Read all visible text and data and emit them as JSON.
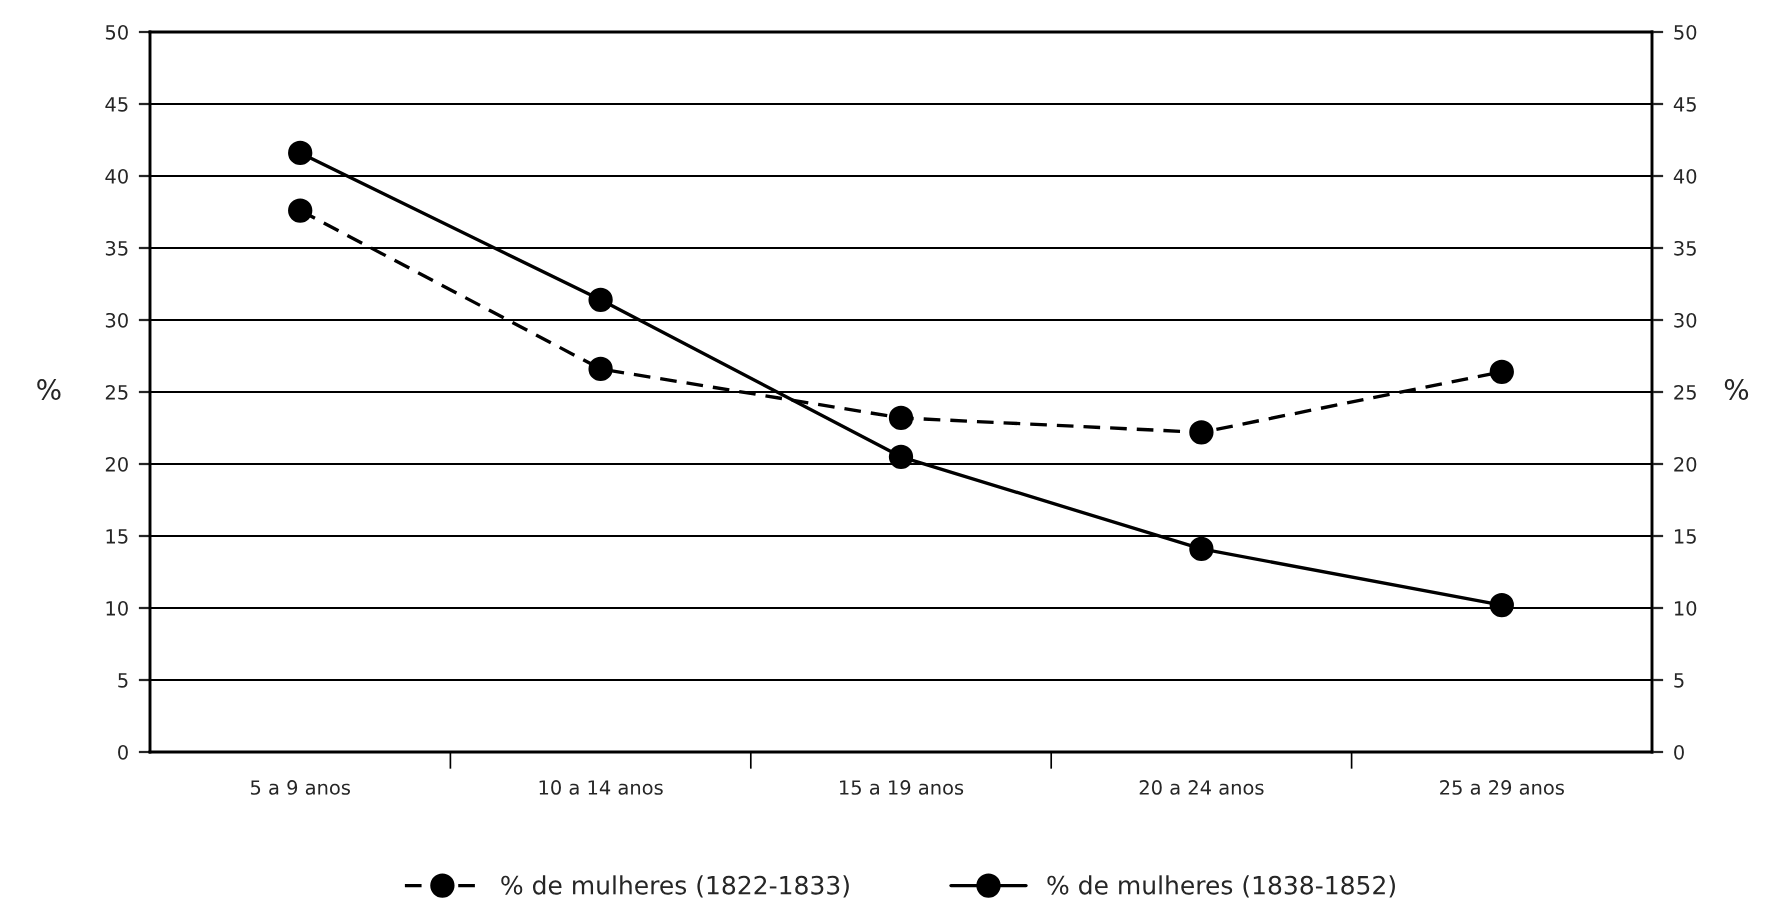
{
  "chart_data": {
    "type": "line",
    "categories": [
      "5 a 9 anos",
      "10 a 14 anos",
      "15 a 19 anos",
      "20 a 24 anos",
      "25 a 29 anos"
    ],
    "series": [
      {
        "name": "% de mulheres (1822-1833)",
        "color": "#000000",
        "line_style": "dashed",
        "values": [
          37.6,
          26.6,
          23.2,
          22.2,
          26.4
        ]
      },
      {
        "name": "% de mulheres (1838-1852)",
        "color": "#000000",
        "line_style": "solid",
        "values": [
          41.6,
          31.4,
          20.5,
          14.1,
          10.2
        ]
      }
    ],
    "ylabel": "%",
    "y2label": "%",
    "ylim": [
      0,
      50
    ],
    "yticks": [
      0,
      5,
      10,
      15,
      20,
      25,
      30,
      35,
      40,
      45,
      50
    ],
    "y2lim": [
      0,
      50
    ],
    "y2ticks": [
      0,
      5,
      10,
      15,
      20,
      25,
      30,
      35,
      40,
      45,
      50
    ],
    "grid": "y",
    "legend": "bottom",
    "marker": "circle"
  }
}
